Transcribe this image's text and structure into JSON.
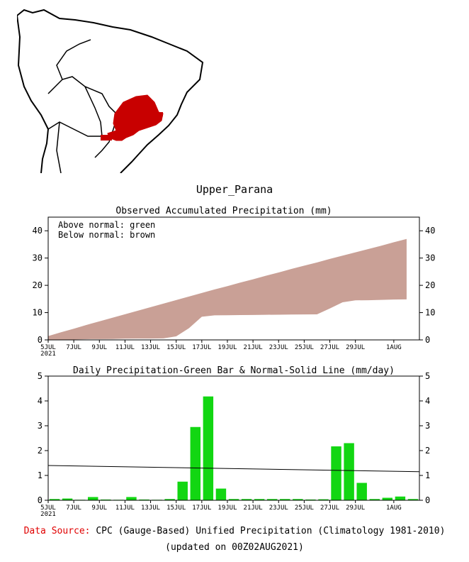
{
  "region_title": "Upper_Parana",
  "footer": {
    "source_label": "Data Source:",
    "source_text": "CPC (Gauge-Based) Unified Precipitation (Climatology 1981-2010)",
    "updated": "(updated on 00Z02AUG2021)"
  },
  "colors": {
    "above_normal": "#00c800",
    "below_normal": "#c9a096",
    "bar": "#12d612",
    "region": "#c80000",
    "source_label": "#e00000"
  },
  "chart_data": [
    {
      "type": "area",
      "title": "Observed Accumulated Precipitation (mm)",
      "annotations": [
        "Above normal: green",
        "Below normal: brown"
      ],
      "ylim": [
        0,
        45
      ],
      "yticks": [
        0,
        10,
        20,
        30,
        40
      ],
      "xlim": [
        0,
        29
      ],
      "x_ticks": [
        {
          "day": 0,
          "label": "5JUL",
          "sub": "2021"
        },
        {
          "day": 2,
          "label": "7JUL"
        },
        {
          "day": 4,
          "label": "9JUL"
        },
        {
          "day": 6,
          "label": "11JUL"
        },
        {
          "day": 8,
          "label": "13JUL"
        },
        {
          "day": 10,
          "label": "15JUL"
        },
        {
          "day": 12,
          "label": "17JUL"
        },
        {
          "day": 14,
          "label": "19JUL"
        },
        {
          "day": 16,
          "label": "21JUL"
        },
        {
          "day": 18,
          "label": "23JUL"
        },
        {
          "day": 20,
          "label": "25JUL"
        },
        {
          "day": 22,
          "label": "27JUL"
        },
        {
          "day": 24,
          "label": "29JUL"
        },
        {
          "day": 27,
          "label": "1AUG"
        }
      ],
      "series": [
        {
          "name": "Normal accumulated",
          "values": [
            1.4,
            2.8,
            4.1,
            5.5,
            6.8,
            8.1,
            9.4,
            10.7,
            12.0,
            13.3,
            14.6,
            15.9,
            17.2,
            18.5,
            19.7,
            21.0,
            22.2,
            23.5,
            24.7,
            26.0,
            27.2,
            28.4,
            29.7,
            30.9,
            32.1,
            33.3,
            34.5,
            35.8,
            37.0
          ]
        },
        {
          "name": "Observed accumulated",
          "values": [
            0.05,
            0.12,
            0.14,
            0.27,
            0.3,
            0.32,
            0.45,
            0.48,
            0.5,
            0.55,
            1.3,
            4.3,
            8.5,
            9.0,
            9.05,
            9.1,
            9.15,
            9.2,
            9.25,
            9.3,
            9.33,
            9.37,
            11.5,
            13.8,
            14.5,
            14.55,
            14.65,
            14.8,
            14.85
          ]
        }
      ]
    },
    {
      "type": "bar",
      "title": "Daily Precipitation-Green Bar & Normal-Solid Line (mm/day)",
      "ylim": [
        0,
        5
      ],
      "yticks": [
        0,
        1,
        2,
        3,
        4,
        5
      ],
      "xlim": [
        0,
        29
      ],
      "x_ticks": [
        {
          "day": 0,
          "label": "5JUL",
          "sub": "2021"
        },
        {
          "day": 2,
          "label": "7JUL"
        },
        {
          "day": 4,
          "label": "9JUL"
        },
        {
          "day": 6,
          "label": "11JUL"
        },
        {
          "day": 8,
          "label": "13JUL"
        },
        {
          "day": 10,
          "label": "15JUL"
        },
        {
          "day": 12,
          "label": "17JUL"
        },
        {
          "day": 14,
          "label": "19JUL"
        },
        {
          "day": 16,
          "label": "21JUL"
        },
        {
          "day": 18,
          "label": "23JUL"
        },
        {
          "day": 20,
          "label": "25JUL"
        },
        {
          "day": 22,
          "label": "27JUL"
        },
        {
          "day": 24,
          "label": "29JUL"
        },
        {
          "day": 27,
          "label": "1AUG"
        }
      ],
      "values": [
        0.05,
        0.07,
        0.02,
        0.13,
        0.03,
        0.02,
        0.13,
        0.03,
        0.02,
        0.05,
        0.75,
        2.95,
        4.18,
        0.47,
        0.05,
        0.05,
        0.05,
        0.05,
        0.05,
        0.05,
        0.03,
        0.04,
        2.17,
        2.3,
        0.7,
        0.05,
        0.1,
        0.15,
        0.05
      ],
      "normal_line": [
        1.4,
        1.15
      ]
    }
  ]
}
